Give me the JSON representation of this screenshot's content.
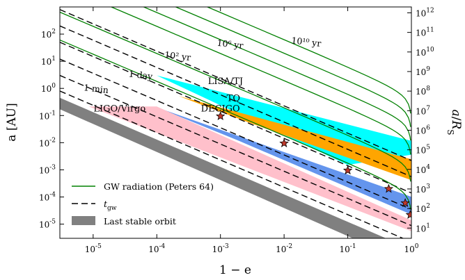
{
  "chart_data": {
    "type": "line",
    "xscale": "log",
    "yscale": "log",
    "xlim": [
      3e-06,
      1
    ],
    "ylim": [
      3e-06,
      1000
    ],
    "y2lim": [
      3,
      2000000000000.0
    ],
    "xlabel": "1 − e",
    "ylabel": "a [AU]",
    "y2label": "a / R_S",
    "x_ticks": [
      {
        "v": 1e-05,
        "b": "10",
        "e": "-5"
      },
      {
        "v": 0.0001,
        "b": "10",
        "e": "-4"
      },
      {
        "v": 0.001,
        "b": "10",
        "e": "-3"
      },
      {
        "v": 0.01,
        "b": "10",
        "e": "-2"
      },
      {
        "v": 0.1,
        "b": "10",
        "e": "-1"
      },
      {
        "v": 1,
        "b": "10",
        "e": "0"
      }
    ],
    "y_ticks": [
      {
        "v": 1e-05,
        "b": "10",
        "e": "-5"
      },
      {
        "v": 0.0001,
        "b": "10",
        "e": "-4"
      },
      {
        "v": 0.001,
        "b": "10",
        "e": "-3"
      },
      {
        "v": 0.01,
        "b": "10",
        "e": "-2"
      },
      {
        "v": 0.1,
        "b": "10",
        "e": "-1"
      },
      {
        "v": 1,
        "b": "10",
        "e": "0"
      },
      {
        "v": 10,
        "b": "10",
        "e": "1"
      },
      {
        "v": 100,
        "b": "10",
        "e": "2"
      }
    ],
    "y2_ticks": [
      {
        "v": 10,
        "b": "10",
        "e": "1"
      },
      {
        "v": 100,
        "b": "10",
        "e": "2"
      },
      {
        "v": 1000,
        "b": "10",
        "e": "3"
      },
      {
        "v": 10000,
        "b": "10",
        "e": "4"
      },
      {
        "v": 100000,
        "b": "10",
        "e": "5"
      },
      {
        "v": 1000000,
        "b": "10",
        "e": "6"
      },
      {
        "v": 10000000,
        "b": "10",
        "e": "7"
      },
      {
        "v": 100000000,
        "b": "10",
        "e": "8"
      },
      {
        "v": 1000000000,
        "b": "10",
        "e": "9"
      },
      {
        "v": 10000000000,
        "b": "10",
        "e": "10"
      },
      {
        "v": 100000000000,
        "b": "10",
        "e": "11"
      },
      {
        "v": 1000000000000,
        "b": "10",
        "e": "12"
      }
    ],
    "regions": [
      {
        "name": "LISA/TJ",
        "color": "#00FFFF",
        "polygon": [
          [
            0.0001,
            3.0
          ],
          [
            1,
            0.0116
          ],
          [
            1,
            0.00363
          ],
          [
            0.1,
            0.00151
          ],
          [
            0.0001,
            3.0
          ]
        ]
      },
      {
        "name": "TQ",
        "color": "#FFA500",
        "polygon": [
          [
            0.00022,
            0.52
          ],
          [
            1,
            0.00245
          ],
          [
            1,
            0.000417
          ],
          [
            0.003,
            0.052
          ],
          [
            0.00022,
            0.52
          ]
        ]
      },
      {
        "name": "DECIGO",
        "color": "#6495ED",
        "polygon": [
          [
            0.0001,
            0.2
          ],
          [
            1,
            0.000102
          ],
          [
            1,
            2.26e-05
          ],
          [
            0.0019,
            0.012
          ],
          [
            0.0001,
            0.2
          ]
        ]
      },
      {
        "name": "LIGO/Virgo",
        "color": "#FFC0CB",
        "polygon": [
          [
            8.5e-06,
            0.215
          ],
          [
            0.0001,
            0.215
          ],
          [
            1,
            1.38e-05
          ],
          [
            1,
            5.5e-06
          ],
          [
            8.5e-06,
            0.215
          ]
        ]
      }
    ],
    "last_stable_orbit": {
      "color": "#808080",
      "upper": [
        [
          3e-06,
          0.45
        ],
        [
          0.4,
          3e-06
        ]
      ],
      "lower": [
        [
          3e-06,
          0.17
        ],
        [
          0.12,
          3e-06
        ]
      ]
    },
    "gw_tracks_x": [
      3e-06,
      1e-05,
      3e-05,
      0.0001,
      0.0003,
      0.001,
      0.003,
      0.01,
      0.03,
      0.1,
      0.2,
      0.3,
      0.4,
      0.5,
      0.6,
      0.7,
      0.8,
      0.9,
      0.95,
      0.97
    ],
    "gw_track_scales": [
      0.00032,
      0.0034,
      0.034,
      0.11,
      0.35,
      1.1
    ],
    "tgw_lines": [
      {
        "label": "",
        "x": [
          3e-06,
          1
        ],
        "y": [
          800,
          0.0022
        ]
      },
      {
        "label": "10¹⁰ yr",
        "x": [
          3e-06,
          1
        ],
        "y": [
          200,
          0.00056
        ]
      },
      {
        "label": "10⁶ yr",
        "x": [
          3e-06,
          1
        ],
        "y": [
          50,
          0.00014
        ]
      },
      {
        "label": "10² yr",
        "x": [
          3e-06,
          1
        ],
        "y": [
          12,
          3.5e-05
        ]
      },
      {
        "label": "1 day",
        "x": [
          3e-06,
          1
        ],
        "y": [
          3,
          8.8e-06
        ]
      },
      {
        "label": "1 min",
        "x": [
          3e-06,
          1
        ],
        "y": [
          0.8,
          2.2e-06
        ]
      }
    ],
    "stars": [
      {
        "x": 0.001,
        "y": 0.095
      },
      {
        "x": 0.01,
        "y": 0.0095
      },
      {
        "x": 0.1,
        "y": 0.00095
      },
      {
        "x": 0.44,
        "y": 0.0002
      },
      {
        "x": 0.8,
        "y": 6e-05
      },
      {
        "x": 0.96,
        "y": 2.2e-05
      }
    ],
    "legend": {
      "placement": "lower-left",
      "entries": [
        {
          "label": "GW radiation (Peters 64)",
          "style": "line",
          "color": "#008000"
        },
        {
          "label": "t",
          "sub": "gw",
          "style": "dashed",
          "color": "#000000"
        },
        {
          "label": "Last stable orbit",
          "style": "patch",
          "color": "#808080"
        }
      ]
    },
    "colors": {
      "gw": "#008000",
      "tgw": "#000000",
      "star_fill": "#C0392B",
      "star_edge": "#000000"
    }
  }
}
